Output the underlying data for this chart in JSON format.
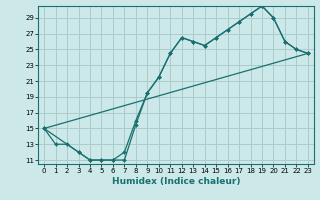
{
  "xlabel": "Humidex (Indice chaleur)",
  "bg_color": "#cce8e8",
  "grid_color": "#aacccc",
  "line_color": "#1a7070",
  "xlim": [
    -0.5,
    23.5
  ],
  "ylim": [
    10.5,
    30.5
  ],
  "yticks": [
    11,
    13,
    15,
    17,
    19,
    21,
    23,
    25,
    27,
    29
  ],
  "xticks": [
    0,
    1,
    2,
    3,
    4,
    5,
    6,
    7,
    8,
    9,
    10,
    11,
    12,
    13,
    14,
    15,
    16,
    17,
    18,
    19,
    20,
    21,
    22,
    23
  ],
  "curve1_x": [
    0,
    1,
    2,
    3,
    4,
    5,
    6,
    7,
    8,
    9,
    10,
    11,
    12,
    13,
    14,
    15,
    16,
    17,
    18,
    19,
    20,
    21,
    22,
    23
  ],
  "curve1_y": [
    15,
    13,
    13,
    12,
    11,
    11,
    11,
    12,
    16,
    19.5,
    21.5,
    24.5,
    26.5,
    26,
    25.5,
    26.5,
    27.5,
    28.5,
    29.5,
    30.5,
    29,
    26,
    25,
    24.5
  ],
  "curve2_x": [
    0,
    3,
    4,
    5,
    6,
    7,
    8,
    9,
    10,
    11,
    12,
    13,
    14,
    15,
    16,
    17,
    18,
    19,
    20,
    21,
    22,
    23
  ],
  "curve2_y": [
    15,
    12,
    11,
    11,
    11,
    11,
    15.5,
    19.5,
    21.5,
    24.5,
    26.5,
    26,
    25.5,
    26.5,
    27.5,
    28.5,
    29.5,
    30.5,
    29,
    26,
    25,
    24.5
  ],
  "line3_x": [
    0,
    23
  ],
  "line3_y": [
    15,
    24.5
  ]
}
